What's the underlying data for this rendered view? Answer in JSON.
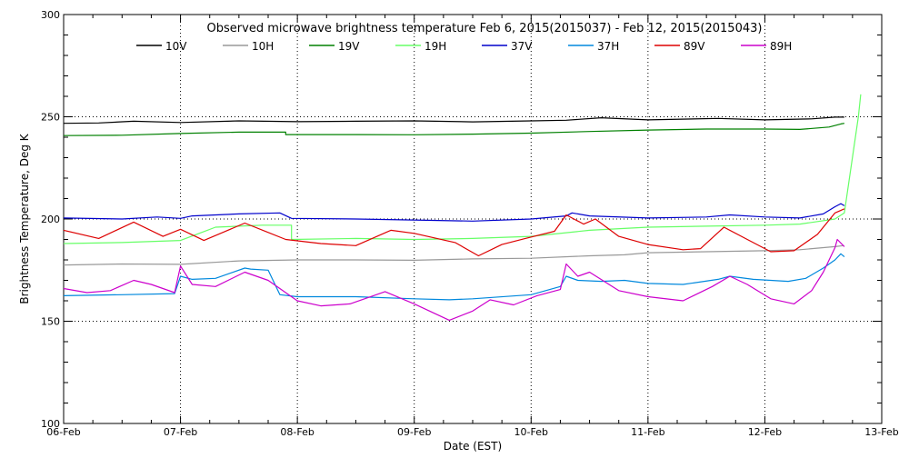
{
  "chart_data": {
    "type": "line",
    "title": "Observed microwave brightness temperature Feb  6, 2015(2015037) - Feb 12, 2015(2015043)",
    "xlabel": "Date (EST)",
    "ylabel": "Brightness Temperature, Deg K",
    "xlim": [
      0,
      7
    ],
    "ylim": [
      100,
      300
    ],
    "x_ticks": [
      {
        "x": 0,
        "label": "06-Feb"
      },
      {
        "x": 1,
        "label": "07-Feb"
      },
      {
        "x": 2,
        "label": "08-Feb"
      },
      {
        "x": 3,
        "label": "09-Feb"
      },
      {
        "x": 4,
        "label": "10-Feb"
      },
      {
        "x": 5,
        "label": "11-Feb"
      },
      {
        "x": 6,
        "label": "12-Feb"
      },
      {
        "x": 7,
        "label": "13-Feb"
      }
    ],
    "y_ticks": [
      {
        "y": 100,
        "label": "100"
      },
      {
        "y": 150,
        "label": "150"
      },
      {
        "y": 200,
        "label": "200"
      },
      {
        "y": 250,
        "label": "250"
      },
      {
        "y": 300,
        "label": "300"
      }
    ],
    "grid": {
      "x": true,
      "y": [
        150,
        200,
        250
      ],
      "style": "dotted"
    },
    "legend_placement": "top",
    "x_unit": "days since 06-Feb 00:00",
    "series": [
      {
        "name": "10V",
        "color": "#000000",
        "points": [
          [
            0,
            246.8
          ],
          [
            0.3,
            247.0
          ],
          [
            0.6,
            247.8
          ],
          [
            1.0,
            247.2
          ],
          [
            1.5,
            248.0
          ],
          [
            2.0,
            247.6
          ],
          [
            2.5,
            247.8
          ],
          [
            3.0,
            248.0
          ],
          [
            3.5,
            247.5
          ],
          [
            4.0,
            248.0
          ],
          [
            4.3,
            248.3
          ],
          [
            4.6,
            249.5
          ],
          [
            5.0,
            248.5
          ],
          [
            5.6,
            249.2
          ],
          [
            6.0,
            248.5
          ],
          [
            6.4,
            249.0
          ],
          [
            6.6,
            249.8
          ],
          [
            6.68,
            249.8
          ]
        ]
      },
      {
        "name": "10H",
        "color": "#999999",
        "points": [
          [
            0,
            177.5
          ],
          [
            0.5,
            178.0
          ],
          [
            1.0,
            177.8
          ],
          [
            1.5,
            179.5
          ],
          [
            2.0,
            180.0
          ],
          [
            2.5,
            180.0
          ],
          [
            3.0,
            179.8
          ],
          [
            3.5,
            180.5
          ],
          [
            4.0,
            180.8
          ],
          [
            4.5,
            182.0
          ],
          [
            4.8,
            182.5
          ],
          [
            5.0,
            183.5
          ],
          [
            5.5,
            184.0
          ],
          [
            6.0,
            184.5
          ],
          [
            6.3,
            185.0
          ],
          [
            6.6,
            186.5
          ],
          [
            6.67,
            187.0
          ]
        ]
      },
      {
        "name": "19V",
        "color": "#008000",
        "points": [
          [
            0,
            240.8
          ],
          [
            0.5,
            241.0
          ],
          [
            1.0,
            241.8
          ],
          [
            1.5,
            242.5
          ],
          [
            1.9,
            242.5
          ],
          [
            1.9,
            241.3
          ],
          [
            2.5,
            241.3
          ],
          [
            3.0,
            241.2
          ],
          [
            3.5,
            241.5
          ],
          [
            4.0,
            242.0
          ],
          [
            4.5,
            242.8
          ],
          [
            5.0,
            243.5
          ],
          [
            5.5,
            244.0
          ],
          [
            6.0,
            244.0
          ],
          [
            6.3,
            243.8
          ],
          [
            6.55,
            245.0
          ],
          [
            6.65,
            246.5
          ],
          [
            6.68,
            246.8
          ]
        ]
      },
      {
        "name": "19H",
        "color": "#66ff66",
        "points": [
          [
            0,
            188.0
          ],
          [
            0.5,
            188.5
          ],
          [
            1.0,
            189.5
          ],
          [
            1.3,
            196.0
          ],
          [
            1.7,
            197.0
          ],
          [
            1.95,
            197.0
          ],
          [
            1.95,
            190.0
          ],
          [
            2.5,
            190.5
          ],
          [
            3.0,
            190.0
          ],
          [
            3.5,
            190.5
          ],
          [
            4.0,
            191.5
          ],
          [
            4.5,
            194.5
          ],
          [
            5.0,
            196.0
          ],
          [
            5.5,
            196.5
          ],
          [
            6.0,
            197.0
          ],
          [
            6.3,
            197.5
          ],
          [
            6.6,
            200.0
          ],
          [
            6.68,
            203.0
          ],
          [
            6.8,
            250.0
          ],
          [
            6.82,
            261.0
          ]
        ]
      },
      {
        "name": "37V",
        "color": "#0000cc",
        "points": [
          [
            0,
            200.5
          ],
          [
            0.5,
            200.0
          ],
          [
            0.8,
            201.0
          ],
          [
            1.0,
            200.3
          ],
          [
            1.1,
            201.5
          ],
          [
            1.5,
            202.5
          ],
          [
            1.85,
            203.0
          ],
          [
            1.95,
            200.3
          ],
          [
            2.5,
            200.0
          ],
          [
            3.0,
            199.5
          ],
          [
            3.5,
            199.0
          ],
          [
            4.0,
            200.0
          ],
          [
            4.3,
            201.5
          ],
          [
            4.35,
            203.0
          ],
          [
            4.5,
            201.5
          ],
          [
            5.0,
            200.5
          ],
          [
            5.5,
            201.0
          ],
          [
            5.7,
            202.0
          ],
          [
            6.0,
            201.0
          ],
          [
            6.3,
            200.5
          ],
          [
            6.5,
            202.5
          ],
          [
            6.6,
            206.0
          ],
          [
            6.65,
            207.5
          ],
          [
            6.68,
            206.5
          ]
        ]
      },
      {
        "name": "37H",
        "color": "#0088dd",
        "points": [
          [
            0,
            162.5
          ],
          [
            0.5,
            163.0
          ],
          [
            0.95,
            163.5
          ],
          [
            1.0,
            172.0
          ],
          [
            1.1,
            170.5
          ],
          [
            1.3,
            171.0
          ],
          [
            1.55,
            176.0
          ],
          [
            1.6,
            175.5
          ],
          [
            1.75,
            175.0
          ],
          [
            1.85,
            163.0
          ],
          [
            2.0,
            162.0
          ],
          [
            2.5,
            162.0
          ],
          [
            3.0,
            161.0
          ],
          [
            3.3,
            160.5
          ],
          [
            3.5,
            161.0
          ],
          [
            4.0,
            163.0
          ],
          [
            4.25,
            167.0
          ],
          [
            4.3,
            172.0
          ],
          [
            4.4,
            170.0
          ],
          [
            4.6,
            169.5
          ],
          [
            4.8,
            170.0
          ],
          [
            5.0,
            168.5
          ],
          [
            5.3,
            168.0
          ],
          [
            5.6,
            170.5
          ],
          [
            5.7,
            172.0
          ],
          [
            5.9,
            170.5
          ],
          [
            6.2,
            169.5
          ],
          [
            6.35,
            171.0
          ],
          [
            6.5,
            176.0
          ],
          [
            6.6,
            180.0
          ],
          [
            6.65,
            183.0
          ],
          [
            6.68,
            181.5
          ]
        ]
      },
      {
        "name": "89V",
        "color": "#dd0000",
        "points": [
          [
            0,
            194.5
          ],
          [
            0.3,
            190.5
          ],
          [
            0.6,
            198.5
          ],
          [
            0.85,
            191.5
          ],
          [
            1.0,
            195.0
          ],
          [
            1.2,
            189.5
          ],
          [
            1.55,
            198.0
          ],
          [
            1.9,
            190.0
          ],
          [
            2.2,
            188.0
          ],
          [
            2.5,
            187.0
          ],
          [
            2.8,
            194.5
          ],
          [
            3.0,
            193.0
          ],
          [
            3.35,
            188.5
          ],
          [
            3.55,
            182.0
          ],
          [
            3.75,
            187.5
          ],
          [
            3.95,
            190.5
          ],
          [
            4.2,
            194.0
          ],
          [
            4.3,
            202.0
          ],
          [
            4.45,
            197.5
          ],
          [
            4.55,
            200.0
          ],
          [
            4.75,
            191.5
          ],
          [
            5.0,
            187.5
          ],
          [
            5.3,
            185.0
          ],
          [
            5.45,
            185.5
          ],
          [
            5.65,
            196.0
          ],
          [
            5.85,
            190.0
          ],
          [
            6.05,
            184.0
          ],
          [
            6.25,
            184.5
          ],
          [
            6.45,
            192.5
          ],
          [
            6.6,
            203.0
          ],
          [
            6.68,
            205.0
          ]
        ]
      },
      {
        "name": "89H",
        "color": "#cc00cc",
        "points": [
          [
            0,
            166.0
          ],
          [
            0.2,
            164.0
          ],
          [
            0.4,
            165.0
          ],
          [
            0.6,
            170.0
          ],
          [
            0.75,
            168.0
          ],
          [
            0.95,
            164.0
          ],
          [
            1.0,
            177.0
          ],
          [
            1.1,
            168.0
          ],
          [
            1.3,
            167.0
          ],
          [
            1.55,
            174.0
          ],
          [
            1.75,
            170.0
          ],
          [
            2.0,
            160.0
          ],
          [
            2.2,
            157.5
          ],
          [
            2.45,
            158.5
          ],
          [
            2.75,
            164.5
          ],
          [
            3.0,
            158.5
          ],
          [
            3.3,
            150.5
          ],
          [
            3.5,
            155.0
          ],
          [
            3.65,
            160.5
          ],
          [
            3.85,
            158.0
          ],
          [
            4.05,
            162.5
          ],
          [
            4.25,
            165.5
          ],
          [
            4.3,
            178.0
          ],
          [
            4.4,
            172.0
          ],
          [
            4.5,
            174.0
          ],
          [
            4.75,
            165.0
          ],
          [
            5.0,
            162.0
          ],
          [
            5.3,
            160.0
          ],
          [
            5.55,
            167.0
          ],
          [
            5.7,
            172.0
          ],
          [
            5.85,
            168.0
          ],
          [
            6.05,
            161.0
          ],
          [
            6.25,
            158.5
          ],
          [
            6.4,
            165.0
          ],
          [
            6.5,
            174.0
          ],
          [
            6.6,
            186.0
          ],
          [
            6.62,
            190.0
          ],
          [
            6.68,
            186.5
          ]
        ]
      }
    ]
  }
}
